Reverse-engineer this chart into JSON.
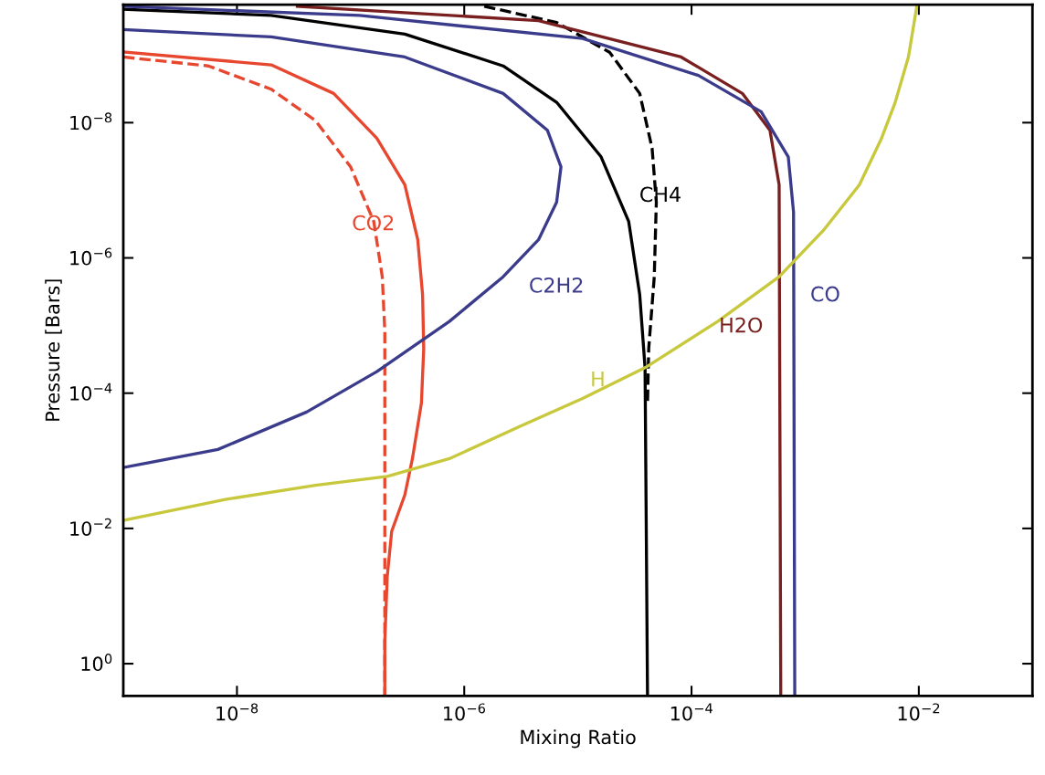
{
  "chart_data": {
    "type": "line",
    "xlabel": "Mixing Ratio",
    "ylabel": "Pressure [Bars]",
    "log": "xy",
    "grid": false,
    "legend": false,
    "xlim": [
      1e-09,
      0.1
    ],
    "ylim": [
      3.0,
      1.8e-10
    ],
    "xticks": [
      {
        "value": 1e-08,
        "label": "10$^{−8}$"
      },
      {
        "value": 1e-06,
        "label": "10$^{−6}$"
      },
      {
        "value": 0.0001,
        "label": "10$^{−4}$"
      },
      {
        "value": 0.01,
        "label": "10$^{−2}$"
      }
    ],
    "yticks": [
      {
        "value": 1e-08,
        "label": "10$^{−8}$"
      },
      {
        "value": 1e-06,
        "label": "10$^{−6}$"
      },
      {
        "value": 0.0001,
        "label": "10$^{−4}$"
      },
      {
        "value": 0.01,
        "label": "10$^{−2}$"
      },
      {
        "value": 1,
        "label": "10$^{0}$"
      }
    ],
    "series": [
      {
        "name": "CO2",
        "color": "#e8472f",
        "line_style": "solid",
        "x": [
          1e-09,
          2e-08,
          7.1e-08,
          1.7e-07,
          3e-07,
          3.9e-07,
          4.3e-07,
          4.4e-07,
          4.2e-07,
          3.5e-07,
          3e-07,
          2.3e-07,
          2.1e-07,
          2e-07,
          2e-07
        ],
        "values": [
          9e-10,
          1.4e-09,
          3.7e-09,
          1.7e-08,
          8.3e-08,
          5.4e-07,
          3.5e-06,
          2.2e-05,
          0.00014,
          0.00093,
          0.0032,
          0.011,
          0.052,
          0.47,
          3.0
        ]
      },
      {
        "color": "#e8472f",
        "line_style": "dashed",
        "x": [
          1e-09,
          5.6e-09,
          2e-08,
          4.9e-08,
          1e-07,
          1.6e-07,
          1.9e-07,
          2e-07,
          2e-07
        ],
        "values": [
          1.07e-09,
          1.45e-09,
          3.2e-09,
          9.3e-09,
          4.5e-08,
          2.9e-07,
          1.9e-06,
          1.2e-05,
          3.0
        ]
      },
      {
        "name": "C2H2",
        "color": "#3b3b8c",
        "line_style": "solid",
        "x": [
          1e-09,
          2e-08,
          3e-07,
          2.2e-06,
          5.4e-06,
          7.1e-06,
          6.5e-06,
          4.5e-06,
          2.2e-06,
          7.4e-07,
          1.7e-07,
          4.1e-08,
          6.8e-09,
          1e-09
        ],
        "values": [
          4.2e-10,
          5.4e-10,
          1.07e-09,
          3.7e-09,
          1.3e-08,
          4.5e-08,
          1.5e-07,
          5.4e-07,
          1.9e-06,
          8.7e-06,
          4.8e-05,
          0.00019,
          0.00068,
          0.00126
        ]
      },
      {
        "name": "CH4",
        "color": "#000000",
        "line_style": "solid",
        "x": [
          1e-09,
          2e-08,
          3e-07,
          2.2e-06,
          6.5e-06,
          1.6e-05,
          2.8e-05,
          3.5e-05,
          3.9e-05,
          4.1e-05
        ],
        "values": [
          2.1e-10,
          2.6e-10,
          4.9e-10,
          1.45e-09,
          5e-09,
          3.2e-08,
          2.9e-07,
          3.5e-06,
          4.2e-05,
          3.0
        ]
      },
      {
        "color": "#000000",
        "line_style": "dashed",
        "x": [
          1.5e-06,
          6.5e-06,
          1.9e-05,
          3.5e-05,
          4.5e-05,
          4.9e-05,
          4.7e-05,
          4.2e-05,
          4.1e-05
        ],
        "values": [
          1.9e-10,
          3.3e-10,
          9.1e-10,
          3.7e-09,
          2.4e-08,
          1.5e-07,
          1.9e-06,
          2.2e-05,
          0.00014
        ]
      },
      {
        "name": "H2O",
        "color": "#7a1f1f",
        "line_style": "solid",
        "x": [
          3.4e-08,
          4.5e-06,
          8.1e-05,
          0.00028,
          0.00049,
          0.00059,
          0.00061
        ],
        "values": [
          1.9e-10,
          3.1e-10,
          1.07e-09,
          3.7e-09,
          1.3e-08,
          8.3e-08,
          3.0
        ]
      },
      {
        "name": "CO",
        "color": "#3b3b8c",
        "line_style": "solid",
        "x": [
          1e-09,
          1.2e-07,
          1.1e-05,
          0.000115,
          0.00041,
          0.00071,
          0.00079,
          0.00081
        ],
        "values": [
          1.9e-10,
          2.6e-10,
          5.7e-10,
          2e-09,
          6.9e-09,
          3.2e-08,
          2.1e-07,
          3.0
        ]
      },
      {
        "name": "H",
        "color": "#c8c83c",
        "line_style": "solid",
        "x": [
          1e-09,
          8.1e-09,
          4.9e-08,
          2.1e-07,
          7.4e-07,
          3.1e-06,
          1.1e-05,
          3.9e-05,
          0.00017,
          0.00059,
          0.00145,
          0.003,
          0.0047,
          0.0062,
          0.0081,
          0.0096
        ],
        "values": [
          0.0076,
          0.0037,
          0.0023,
          0.0017,
          0.00093,
          0.00031,
          0.00012,
          4.2e-05,
          8.7e-06,
          1.9e-06,
          3.9e-07,
          8.3e-08,
          1.7e-08,
          5e-09,
          1.07e-09,
          1.9e-10
        ]
      }
    ]
  }
}
